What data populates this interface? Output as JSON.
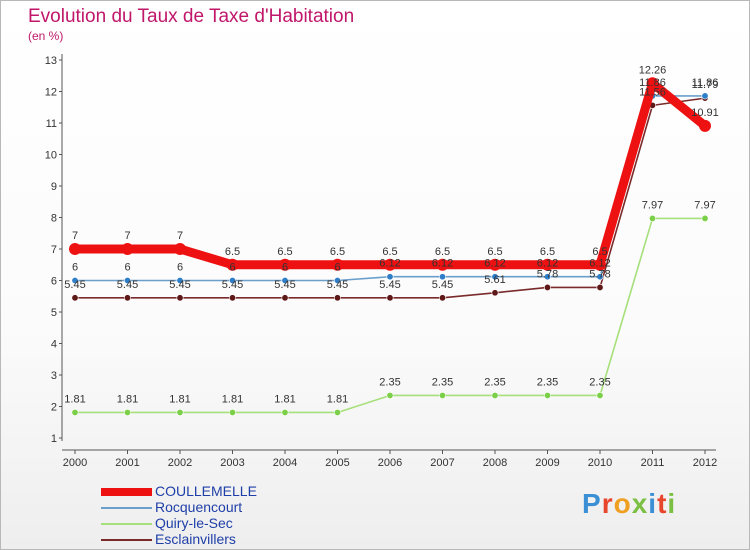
{
  "title": "Evolution du Taux de Taxe d'Habitation",
  "subtitle": "(en %)",
  "logo": {
    "text": "Proxiti",
    "letter_colors": [
      "#3b8fd4",
      "#e8452d",
      "#f0a020",
      "#7bc043",
      "#3b8fd4",
      "#e8452d",
      "#7bc043"
    ]
  },
  "chart_data": {
    "type": "line",
    "title": "Evolution du Taux de Taxe d'Habitation",
    "ylabel": "(en %)",
    "xlabel": "",
    "ylim": [
      1,
      13
    ],
    "yticks": [
      "1",
      "2",
      "3",
      "4",
      "5",
      "6",
      "7",
      "8",
      "9",
      "10",
      "11",
      "12",
      "13"
    ],
    "x": [
      "2000",
      "2001",
      "2002",
      "2003",
      "2004",
      "2005",
      "2006",
      "2007",
      "2008",
      "2009",
      "2010",
      "2011",
      "2012"
    ],
    "series": [
      {
        "name": "COULLEMELLE",
        "color": "#ee1111",
        "marker": "#ee1111",
        "values": [
          7,
          7,
          7,
          6.5,
          6.5,
          6.5,
          6.5,
          6.5,
          6.5,
          6.5,
          6.5,
          12.26,
          10.91
        ],
        "labels": [
          "7",
          "7",
          "7",
          "6.5",
          "6.5",
          "6.5",
          "6.5",
          "6.5",
          "6.5",
          "6.5",
          "6.5",
          "12.26",
          "10.91"
        ]
      },
      {
        "name": "Rocquencourt",
        "color": "#6a9fcc",
        "marker": "#2f7ec8",
        "values": [
          6,
          6,
          6,
          6,
          6,
          6,
          6.12,
          6.12,
          6.12,
          6.12,
          6.12,
          11.86,
          11.86
        ],
        "labels": [
          "6",
          "6",
          "6",
          "6",
          "6",
          "6",
          "6.12",
          "6.12",
          "6.12",
          "6.12",
          "6.12",
          "11.86",
          "11.86"
        ]
      },
      {
        "name": "Quiry-le-Sec",
        "color": "#a6e07a",
        "marker": "#7ccf48",
        "values": [
          1.81,
          1.81,
          1.81,
          1.81,
          1.81,
          1.81,
          2.35,
          2.35,
          2.35,
          2.35,
          2.35,
          7.97,
          7.97
        ],
        "labels": [
          "1.81",
          "1.81",
          "1.81",
          "1.81",
          "1.81",
          "1.81",
          "2.35",
          "2.35",
          "2.35",
          "2.35",
          "2.35",
          "7.97",
          "7.97"
        ]
      },
      {
        "name": "Esclainvillers",
        "color": "#7a2a2a",
        "marker": "#5e1818",
        "values": [
          5.45,
          5.45,
          5.45,
          5.45,
          5.45,
          5.45,
          5.45,
          5.45,
          5.61,
          5.78,
          5.78,
          11.56,
          11.79
        ],
        "labels": [
          "5.45",
          "5.45",
          "5.45",
          "5.45",
          "5.45",
          "5.45",
          "5.45",
          "5.45",
          "5.61",
          "5.78",
          "5.78",
          "11.56",
          "11.79"
        ]
      }
    ],
    "grid": false,
    "legend": "bottom-left"
  }
}
